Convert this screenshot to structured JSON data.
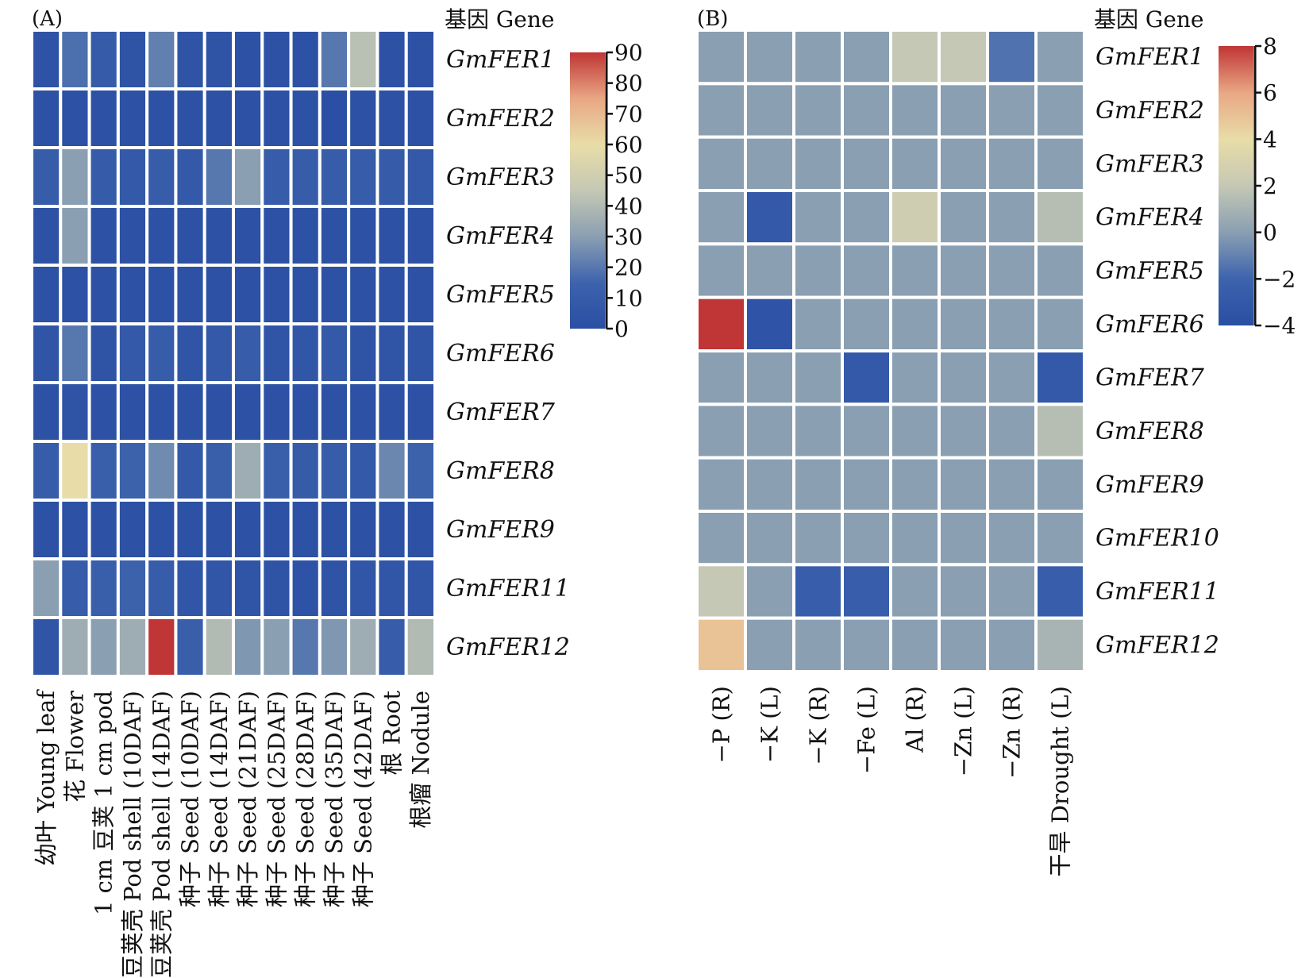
{
  "chart_data": [
    {
      "type": "heatmap",
      "panel_label": "(A)",
      "gene_header": "基因 Gene",
      "columns": [
        "幼叶 Young leaf",
        "花 Flower",
        "1 cm 豆荚 1 cm pod",
        "豆荚壳 Pod shell (10DAF)",
        "豆荚壳 Pod shell (14DAF)",
        "种子 Seed (10DAF)",
        "种子 Seed (14DAF)",
        "种子 Seed (21DAF)",
        "种子 Seed (25DAF)",
        "种子 Seed (28DAF)",
        "种子 Seed (35DAF)",
        "种子 Seed (42DAF)",
        "根 Root",
        "根瘤 Nodule"
      ],
      "rows": [
        "GmFER1",
        "GmFER2",
        "GmFER3",
        "GmFER4",
        "GmFER5",
        "GmFER6",
        "GmFER7",
        "GmFER8",
        "GmFER9",
        "GmFER11",
        "GmFER12"
      ],
      "values": [
        [
          3,
          18,
          9,
          4,
          22,
          4,
          4,
          2,
          2,
          2,
          20,
          42,
          2,
          2
        ],
        [
          2,
          2,
          2,
          2,
          2,
          2,
          2,
          2,
          2,
          2,
          1,
          2,
          2,
          2
        ],
        [
          10,
          30,
          9,
          8,
          10,
          8,
          20,
          30,
          10,
          10,
          10,
          10,
          9,
          8
        ],
        [
          2,
          30,
          2,
          2,
          2,
          2,
          2,
          2,
          2,
          2,
          2,
          2,
          2,
          2
        ],
        [
          2,
          2,
          2,
          2,
          2,
          2,
          2,
          2,
          2,
          2,
          2,
          2,
          2,
          2
        ],
        [
          5,
          20,
          4,
          8,
          10,
          5,
          8,
          10,
          5,
          6,
          8,
          4,
          5,
          5
        ],
        [
          2,
          4,
          2,
          2,
          2,
          2,
          2,
          2,
          2,
          2,
          2,
          2,
          2,
          2
        ],
        [
          10,
          60,
          12,
          14,
          25,
          8,
          12,
          35,
          12,
          9,
          10,
          8,
          24,
          14
        ],
        [
          2,
          2,
          2,
          2,
          2,
          2,
          2,
          2,
          2,
          2,
          2,
          2,
          2,
          2
        ],
        [
          30,
          10,
          12,
          14,
          10,
          6,
          6,
          5,
          4,
          3,
          4,
          6,
          6,
          6
        ],
        [
          5,
          35,
          30,
          35,
          90,
          12,
          40,
          28,
          30,
          20,
          28,
          35,
          10,
          40
        ]
      ],
      "colorbar": {
        "ticks": [
          0,
          10,
          20,
          30,
          40,
          50,
          60,
          70,
          80,
          90
        ],
        "range": [
          0,
          90
        ]
      }
    },
    {
      "type": "heatmap",
      "panel_label": "(B)",
      "gene_header": "基因 Gene",
      "columns": [
        "−P (R)",
        "−K (L)",
        "−K (R)",
        "−Fe (L)",
        "Al (R)",
        "−Zn (L)",
        "−Zn (R)",
        "干旱 Drought (L)"
      ],
      "rows": [
        "GmFER1",
        "GmFER2",
        "GmFER3",
        "GmFER4",
        "GmFER5",
        "GmFER6",
        "GmFER7",
        "GmFER8",
        "GmFER9",
        "GmFER10",
        "GmFER11",
        "GmFER12"
      ],
      "values": [
        [
          0,
          0,
          0,
          0,
          2,
          2,
          -1.5,
          0
        ],
        [
          0,
          0,
          0,
          0,
          0,
          0,
          0,
          0
        ],
        [
          0,
          0,
          0,
          0,
          0,
          0,
          0,
          0
        ],
        [
          0,
          -3,
          0,
          0,
          2.5,
          0,
          0,
          1.5
        ],
        [
          0,
          0,
          0,
          0,
          0,
          0,
          0,
          0
        ],
        [
          8,
          -3.5,
          0,
          0,
          0,
          0,
          0,
          0
        ],
        [
          0,
          0,
          0,
          -3,
          0,
          0,
          0,
          -3
        ],
        [
          0,
          0,
          0,
          0,
          0,
          0,
          0,
          1.5
        ],
        [
          0,
          0,
          0,
          0,
          0,
          0,
          0,
          0
        ],
        [
          0,
          0,
          0,
          0,
          0,
          0,
          0,
          0
        ],
        [
          2,
          0,
          -2.5,
          -2.5,
          0,
          0,
          0,
          -2.5
        ],
        [
          5,
          0,
          0,
          0,
          0,
          0,
          0,
          1
        ]
      ],
      "colorbar": {
        "ticks": [
          "8",
          "6",
          "4",
          "2",
          "0",
          "−2",
          "−4"
        ],
        "range": [
          -4,
          8
        ]
      }
    }
  ],
  "colors": {
    "scale": [
      "#2a4ea3",
      "#3d63ad",
      "#8a9fb2",
      "#c5c8b4",
      "#e8dda8",
      "#e9a784",
      "#c03535"
    ],
    "cell_border": "#ffffff"
  }
}
